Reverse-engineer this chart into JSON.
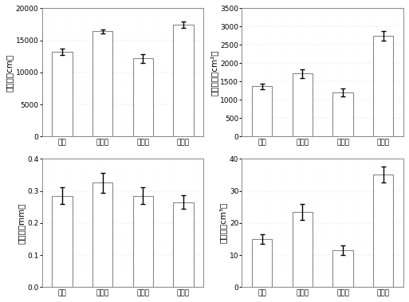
{
  "categories": [
    "对照",
    "膨胀素",
    "生根粉",
    "调控剂"
  ],
  "subplot1": {
    "ylabel": "总根长（cm）",
    "values": [
      13200,
      16400,
      12200,
      17400
    ],
    "errors": [
      500,
      350,
      700,
      500
    ],
    "ylim": [
      0,
      20000
    ],
    "yticks": [
      0,
      5000,
      10000,
      15000,
      20000
    ]
  },
  "subplot2": {
    "ylabel": "根表面积（cm²）",
    "values": [
      1370,
      1720,
      1200,
      2750
    ],
    "errors": [
      80,
      120,
      110,
      130
    ],
    "ylim": [
      0,
      3500
    ],
    "yticks": [
      0,
      500,
      1000,
      1500,
      2000,
      2500,
      3000,
      3500
    ]
  },
  "subplot3": {
    "ylabel": "根直径（mm）",
    "values": [
      0.285,
      0.325,
      0.285,
      0.265
    ],
    "errors": [
      0.025,
      0.03,
      0.025,
      0.022
    ],
    "ylim": [
      0.0,
      0.4
    ],
    "yticks": [
      0.0,
      0.1,
      0.2,
      0.3,
      0.4
    ]
  },
  "subplot4": {
    "ylabel": "根体积（cm³）",
    "values": [
      15,
      23.5,
      11.5,
      35
    ],
    "errors": [
      1.5,
      2.5,
      1.5,
      2.5
    ],
    "ylim": [
      0,
      40
    ],
    "yticks": [
      0,
      10,
      20,
      30,
      40
    ]
  },
  "bar_color": "#ffffff",
  "bar_edgecolor": "#888888",
  "grid_color": "#aaaaaa",
  "tick_fontsize": 6.5,
  "label_fontsize": 7.5
}
